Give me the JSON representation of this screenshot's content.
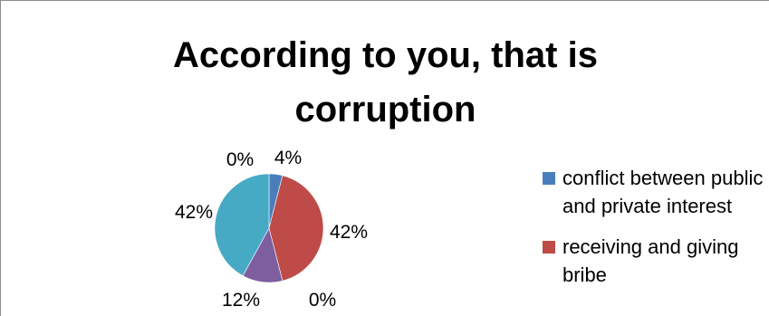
{
  "chart_data": {
    "type": "pie",
    "title_lines": [
      "According to you, that is",
      "corruption"
    ],
    "slices": [
      {
        "name": "conflict between public and private interest",
        "value": 4,
        "label": "4%",
        "color": "#4a7ebb"
      },
      {
        "name": "receiving and giving bribe",
        "value": 42,
        "label": "42%",
        "color": "#be4b48"
      },
      {
        "name": "",
        "value": 0,
        "label": "0%",
        "color": "#98b954"
      },
      {
        "name": "",
        "value": 12,
        "label": "12%",
        "color": "#7d5fa0"
      },
      {
        "name": "",
        "value": 42,
        "label": "42%",
        "color": "#46aac5"
      },
      {
        "name": "",
        "value": 0,
        "label": "0%",
        "color": "#f79646"
      }
    ],
    "legend_items": [
      {
        "label": "conflict between public and private interest",
        "color": "#4a7ebb"
      },
      {
        "label": "receiving and giving bribe",
        "color": "#be4b48"
      }
    ],
    "legend_position": "right"
  }
}
